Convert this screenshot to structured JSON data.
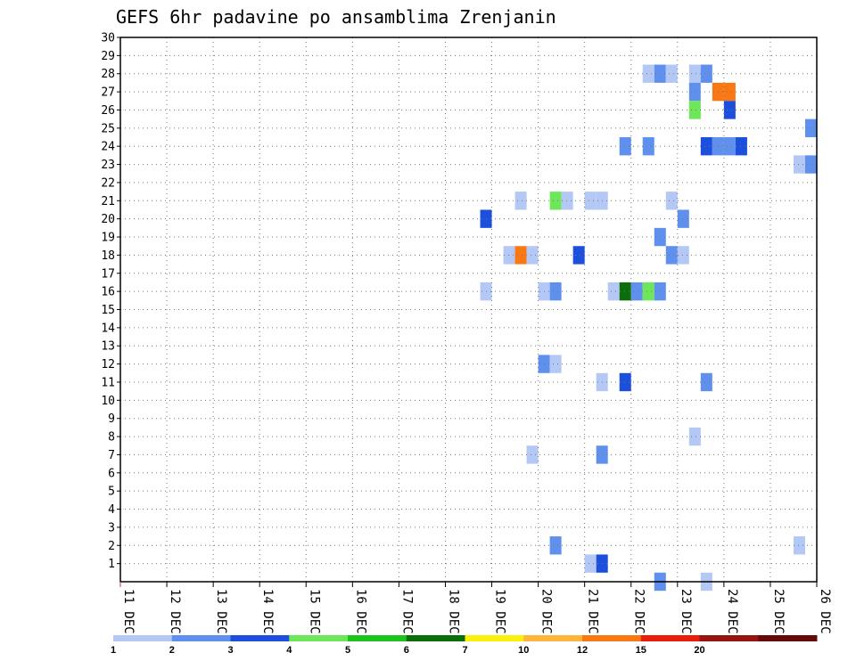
{
  "chart_data": {
    "type": "heatmap",
    "title": "GEFS 6hr padavine po ansamblima Zrenjanin",
    "xlabel": "",
    "ylabel": "",
    "grid": true,
    "x_range": [
      "11 DEC 00Z",
      "26 DEC 00Z"
    ],
    "x_step_hours": 6,
    "x_ticks": [
      "11 DEC",
      "12 DEC",
      "13 DEC",
      "14 DEC",
      "15 DEC",
      "16 DEC",
      "17 DEC",
      "18 DEC",
      "19 DEC",
      "20 DEC",
      "21 DEC",
      "22 DEC",
      "23 DEC",
      "24 DEC",
      "25 DEC",
      "26 DEC"
    ],
    "y_ticks": [
      "1",
      "2",
      "3",
      "4",
      "5",
      "6",
      "7",
      "8",
      "9",
      "10",
      "11",
      "12",
      "13",
      "14",
      "15",
      "16",
      "17",
      "18",
      "19",
      "20",
      "21",
      "22",
      "23",
      "24",
      "25",
      "26",
      "27",
      "28",
      "29",
      "30"
    ],
    "y_range": [
      0,
      30
    ],
    "color_scale": {
      "labels": [
        "1",
        "2",
        "3",
        "4",
        "5",
        "6",
        "7",
        "10",
        "12",
        "15",
        "20"
      ],
      "colors": [
        "#b4c8f5",
        "#6090ee",
        "#1c50dc",
        "#6ee65a",
        "#1ec31e",
        "#0a6e0a",
        "#faf00a",
        "#ffb43c",
        "#fa7814",
        "#e61e0a",
        "#961414",
        "#640a0a"
      ]
    },
    "cells": [
      {
        "t": "22 DEC 06Z",
        "m": 28,
        "bin": 0
      },
      {
        "t": "22 DEC 12Z",
        "m": 28,
        "bin": 1
      },
      {
        "t": "22 DEC 18Z",
        "m": 28,
        "bin": 0
      },
      {
        "t": "23 DEC 06Z",
        "m": 28,
        "bin": 0
      },
      {
        "t": "23 DEC 12Z",
        "m": 28,
        "bin": 1
      },
      {
        "t": "23 DEC 06Z",
        "m": 27,
        "bin": 1
      },
      {
        "t": "23 DEC 18Z",
        "m": 27,
        "bin": 8
      },
      {
        "t": "24 DEC 00Z",
        "m": 27,
        "bin": 8
      },
      {
        "t": "23 DEC 06Z",
        "m": 26,
        "bin": 3
      },
      {
        "t": "24 DEC 00Z",
        "m": 26,
        "bin": 2
      },
      {
        "t": "25 DEC 18Z",
        "m": 25,
        "bin": 1
      },
      {
        "t": "21 DEC 18Z",
        "m": 24,
        "bin": 1
      },
      {
        "t": "22 DEC 06Z",
        "m": 24,
        "bin": 1
      },
      {
        "t": "23 DEC 12Z",
        "m": 24,
        "bin": 2
      },
      {
        "t": "23 DEC 18Z",
        "m": 24,
        "bin": 1
      },
      {
        "t": "24 DEC 00Z",
        "m": 24,
        "bin": 1
      },
      {
        "t": "24 DEC 06Z",
        "m": 24,
        "bin": 2
      },
      {
        "t": "25 DEC 12Z",
        "m": 23,
        "bin": 0
      },
      {
        "t": "25 DEC 18Z",
        "m": 23,
        "bin": 1
      },
      {
        "t": "19 DEC 12Z",
        "m": 21,
        "bin": 0
      },
      {
        "t": "20 DEC 06Z",
        "m": 21,
        "bin": 3
      },
      {
        "t": "20 DEC 12Z",
        "m": 21,
        "bin": 0
      },
      {
        "t": "21 DEC 00Z",
        "m": 21,
        "bin": 0
      },
      {
        "t": "21 DEC 06Z",
        "m": 21,
        "bin": 0
      },
      {
        "t": "22 DEC 18Z",
        "m": 21,
        "bin": 0
      },
      {
        "t": "18 DEC 18Z",
        "m": 20,
        "bin": 2
      },
      {
        "t": "23 DEC 00Z",
        "m": 20,
        "bin": 1
      },
      {
        "t": "22 DEC 12Z",
        "m": 19,
        "bin": 1
      },
      {
        "t": "19 DEC 06Z",
        "m": 18,
        "bin": 0
      },
      {
        "t": "19 DEC 12Z",
        "m": 18,
        "bin": 8
      },
      {
        "t": "19 DEC 18Z",
        "m": 18,
        "bin": 0
      },
      {
        "t": "20 DEC 18Z",
        "m": 18,
        "bin": 2
      },
      {
        "t": "22 DEC 18Z",
        "m": 18,
        "bin": 1
      },
      {
        "t": "23 DEC 00Z",
        "m": 18,
        "bin": 0
      },
      {
        "t": "18 DEC 18Z",
        "m": 16,
        "bin": 0
      },
      {
        "t": "20 DEC 00Z",
        "m": 16,
        "bin": 0
      },
      {
        "t": "20 DEC 06Z",
        "m": 16,
        "bin": 1
      },
      {
        "t": "21 DEC 12Z",
        "m": 16,
        "bin": 0
      },
      {
        "t": "21 DEC 18Z",
        "m": 16,
        "bin": 5
      },
      {
        "t": "22 DEC 00Z",
        "m": 16,
        "bin": 1
      },
      {
        "t": "22 DEC 06Z",
        "m": 16,
        "bin": 3
      },
      {
        "t": "22 DEC 12Z",
        "m": 16,
        "bin": 1
      },
      {
        "t": "20 DEC 00Z",
        "m": 12,
        "bin": 1
      },
      {
        "t": "20 DEC 06Z",
        "m": 12,
        "bin": 0
      },
      {
        "t": "21 DEC 06Z",
        "m": 11,
        "bin": 0
      },
      {
        "t": "21 DEC 18Z",
        "m": 11,
        "bin": 2
      },
      {
        "t": "23 DEC 12Z",
        "m": 11,
        "bin": 1
      },
      {
        "t": "23 DEC 06Z",
        "m": 8,
        "bin": 0
      },
      {
        "t": "19 DEC 18Z",
        "m": 7,
        "bin": 0
      },
      {
        "t": "21 DEC 06Z",
        "m": 7,
        "bin": 1
      },
      {
        "t": "20 DEC 06Z",
        "m": 2,
        "bin": 1
      },
      {
        "t": "25 DEC 12Z",
        "m": 2,
        "bin": 0
      },
      {
        "t": "21 DEC 00Z",
        "m": 1,
        "bin": 0
      },
      {
        "t": "21 DEC 06Z",
        "m": 1,
        "bin": 2
      },
      {
        "t": "22 DEC 12Z",
        "m": 0,
        "bin": 1
      },
      {
        "t": "23 DEC 12Z",
        "m": 0,
        "bin": 0
      }
    ]
  }
}
